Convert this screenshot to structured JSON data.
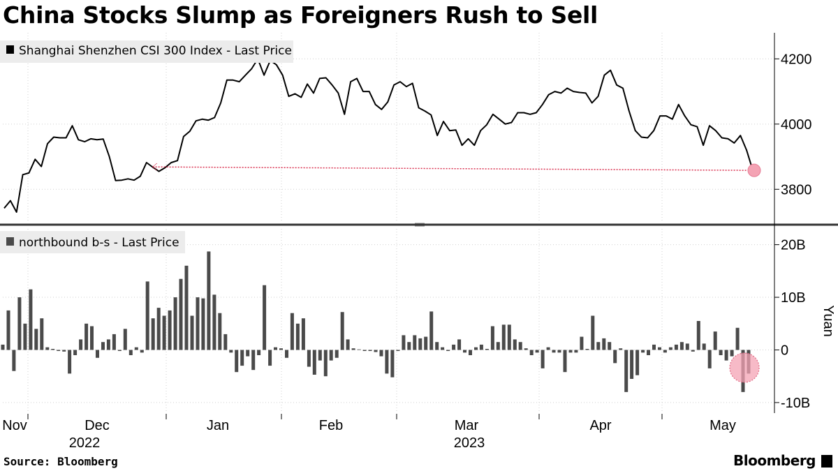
{
  "title": "China Stocks Slump as Foreigners Rush to Sell",
  "source": "Source: Bloomberg",
  "brand": "Bloomberg",
  "colors": {
    "line": "#000000",
    "bar": "#4a4a4a",
    "highlight": "#f4a3b4",
    "reference_line": "#d9304f",
    "grid": "#cfcfcf",
    "panel_separator": "#333333",
    "legend_bg": "#ececec"
  },
  "chart_data": [
    {
      "type": "line",
      "legend": "Shanghai Shenzhen CSI 300 Index - Last Price",
      "y_ticks": [
        3800,
        4000,
        4200
      ],
      "ylim": [
        3700,
        4280
      ],
      "x_ticks": [
        "Nov",
        "Dec",
        "Jan",
        "Feb",
        "Mar",
        "Apr",
        "May"
      ],
      "year_labels": [
        {
          "label": "2022",
          "under": "Dec"
        },
        {
          "label": "2023",
          "under": "Mar"
        }
      ],
      "values": [
        3742,
        3765,
        3730,
        3845,
        3850,
        3892,
        3870,
        3940,
        3960,
        3958,
        3958,
        3995,
        3952,
        3946,
        3955,
        3952,
        3954,
        3900,
        3827,
        3828,
        3832,
        3828,
        3840,
        3882,
        3868,
        3855,
        3866,
        3882,
        3888,
        3962,
        3978,
        4010,
        4015,
        4012,
        4020,
        4065,
        4135,
        4135,
        4130,
        4150,
        4170,
        4200,
        4150,
        4195,
        4182,
        4150,
        4085,
        4093,
        4082,
        4123,
        4095,
        4140,
        4142,
        4120,
        4095,
        4030,
        4130,
        4140,
        4100,
        4100,
        4060,
        4045,
        4068,
        4120,
        4130,
        4115,
        4125,
        4050,
        4040,
        4028,
        3965,
        4008,
        3980,
        3982,
        3935,
        3955,
        3935,
        3980,
        3998,
        4030,
        4015,
        4000,
        4005,
        4035,
        4035,
        4030,
        4035,
        4060,
        4090,
        4100,
        4095,
        4110,
        4100,
        4097,
        4095,
        4065,
        4085,
        4150,
        4165,
        4120,
        4110,
        4040,
        3980,
        3960,
        3958,
        3980,
        4025,
        4025,
        4015,
        4060,
        4025,
        3998,
        3992,
        3935,
        3995,
        3980,
        3958,
        3955,
        3942,
        3965,
        3920,
        3858
      ],
      "last_point": 3858,
      "reference_from_index": 24
    },
    {
      "type": "bar",
      "legend": "northbound b-s - Last Price",
      "unit": "Yuan",
      "y_ticks": [
        -10,
        0,
        10,
        20
      ],
      "y_tick_labels": [
        "-10B",
        "0",
        "10B",
        "20B"
      ],
      "ylim": [
        -12,
        23
      ],
      "values": [
        1,
        7.5,
        -4,
        10,
        5,
        11.5,
        4,
        6,
        0.5,
        0.2,
        -0.2,
        -0.3,
        -4.5,
        -1,
        2,
        5,
        4.5,
        -1.5,
        1.5,
        2,
        3,
        -0.2,
        4,
        -1,
        0.5,
        -0.5,
        13,
        6,
        8,
        6.5,
        7.5,
        10,
        13.5,
        16,
        6.5,
        10,
        9.8,
        18.7,
        10.5,
        7,
        3,
        -0.5,
        -4.2,
        -3,
        -1.2,
        -3.8,
        -1,
        12.3,
        -3,
        0.5,
        0.3,
        -1.5,
        7,
        5,
        6,
        -3.2,
        -4.7,
        -2,
        -5,
        -2,
        -1.5,
        7.2,
        2,
        0.3,
        0.1,
        -0.2,
        -0.2,
        -0.4,
        -1.2,
        -4.5,
        -5.2,
        -0.2,
        2.8,
        1.5,
        2.8,
        2.2,
        2.5,
        7.3,
        1.5,
        0.5,
        -0.2,
        1,
        2,
        -0.5,
        -1,
        0.5,
        1,
        0.2,
        4.5,
        1.5,
        4.8,
        4.8,
        2,
        1.5,
        0.3,
        -1,
        -0.5,
        -3.5,
        0.5,
        -0.5,
        -0.5,
        -4.2,
        -0.5,
        -0.5,
        2.5,
        0.2,
        6.5,
        1.5,
        2.2,
        1.5,
        -2.5,
        0.3,
        -8,
        -5.5,
        -4.8,
        -0.5,
        -1,
        1,
        0.5,
        -0.5,
        0.5,
        1,
        1.5,
        1.2,
        -0.3,
        5.5,
        1.2,
        -3.5,
        3.5,
        -1,
        -2,
        -1.2,
        4.2,
        -8,
        -4.5
      ],
      "highlight_last": true
    }
  ]
}
